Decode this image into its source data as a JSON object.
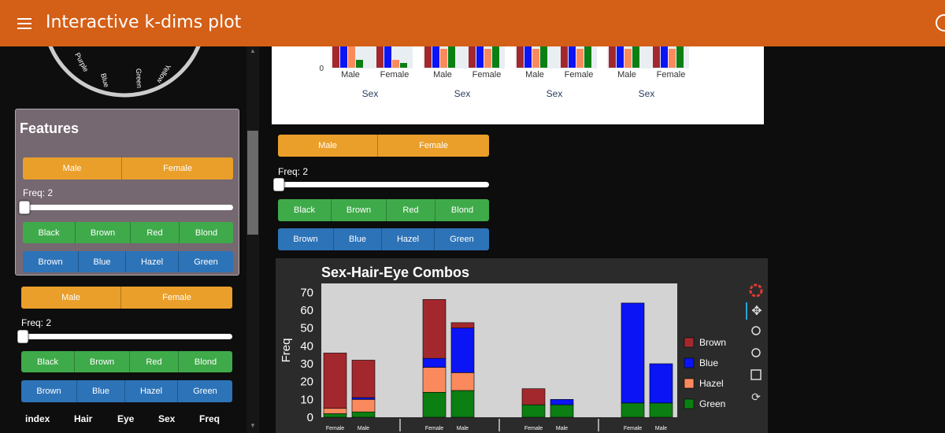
{
  "header": {
    "title": "Interactive k-dims plot"
  },
  "wheel": {
    "labels": [
      "Purple",
      "Blue",
      "Green",
      "Yellow"
    ]
  },
  "features": {
    "title": "Features",
    "sex_options": [
      "Male",
      "Female"
    ],
    "freq_label": "Freq: 2",
    "slider_value": 2,
    "hair_options": [
      "Black",
      "Brown",
      "Red",
      "Blond"
    ],
    "eye_options": [
      "Brown",
      "Blue",
      "Hazel",
      "Green"
    ]
  },
  "widgets": {
    "sex_options": [
      "Male",
      "Female"
    ],
    "freq_label": "Freq: 2",
    "hair_options": [
      "Black",
      "Brown",
      "Red",
      "Blond"
    ],
    "eye_options": [
      "Brown",
      "Blue",
      "Hazel",
      "Green"
    ]
  },
  "table": {
    "columns": [
      "index",
      "Hair",
      "Eye",
      "Sex",
      "Freq"
    ]
  },
  "colors": {
    "Brown": "#a3282d",
    "Blue": "#0a14f5",
    "Hazel": "#fa8a5d",
    "Green": "#0b7f12"
  },
  "chart_data": [
    {
      "type": "bar",
      "title": "",
      "xlabel": "Sex",
      "ytick_visible": [
        "0"
      ],
      "panels": [
        {
          "categories": [
            "Male",
            "Female"
          ],
          "xlabel": "Sex"
        },
        {
          "categories": [
            "Male",
            "Female"
          ],
          "xlabel": "Sex"
        },
        {
          "categories": [
            "Male",
            "Female"
          ],
          "xlabel": "Sex"
        },
        {
          "categories": [
            "Male",
            "Female"
          ],
          "xlabel": "Sex"
        }
      ]
    },
    {
      "type": "bar",
      "stacked": true,
      "title": "Sex-Hair-Eye Combos",
      "ylabel": "Freq",
      "ylim": [
        0,
        75
      ],
      "yticks": [
        0,
        10,
        20,
        30,
        40,
        50,
        60,
        70
      ],
      "legend": {
        "placement": "right",
        "entries": [
          "Brown",
          "Blue",
          "Hazel",
          "Green"
        ]
      },
      "groups": [
        {
          "categories": [
            "Female",
            "Male"
          ]
        },
        {
          "categories": [
            "Female",
            "Male"
          ]
        },
        {
          "categories": [
            "Female",
            "Male"
          ]
        },
        {
          "categories": [
            "Female",
            "Male"
          ]
        }
      ],
      "bars": [
        {
          "group": 0,
          "sex": "Female",
          "Green": 2,
          "Hazel": 3,
          "Blue": 0,
          "Brown": 31
        },
        {
          "group": 0,
          "sex": "Male",
          "Green": 3,
          "Hazel": 7,
          "Blue": 1,
          "Brown": 21
        },
        {
          "group": 1,
          "sex": "Female",
          "Green": 14,
          "Hazel": 14,
          "Blue": 5,
          "Brown": 33
        },
        {
          "group": 1,
          "sex": "Male",
          "Green": 15,
          "Hazel": 10,
          "Blue": 25,
          "Brown": 3
        },
        {
          "group": 2,
          "sex": "Female",
          "Green": 7,
          "Hazel": 0,
          "Blue": 0,
          "Brown": 9
        },
        {
          "group": 2,
          "sex": "Male",
          "Green": 7,
          "Hazel": 0,
          "Blue": 3,
          "Brown": 0
        },
        {
          "group": 3,
          "sex": "Female",
          "Green": 8,
          "Hazel": 0,
          "Blue": 56,
          "Brown": 0
        },
        {
          "group": 3,
          "sex": "Male",
          "Green": 8,
          "Hazel": 0,
          "Blue": 22,
          "Brown": 0
        }
      ]
    }
  ]
}
